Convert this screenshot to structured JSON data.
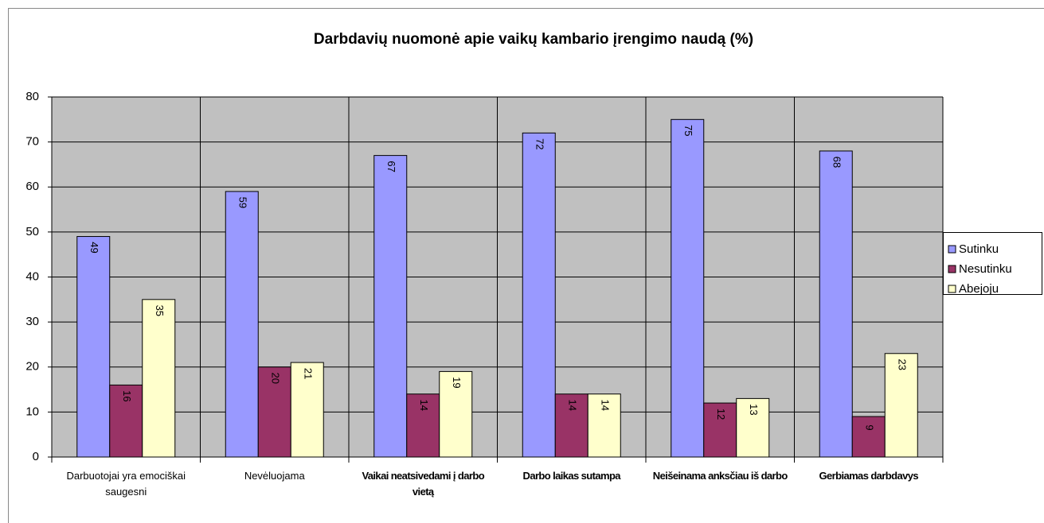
{
  "chart_data": {
    "type": "bar",
    "title": "Darbdavių nuomonė apie vaikų kambario įrengimo naudą (%)",
    "categories": [
      "Darbuotojai yra emociškai saugesni",
      "Nevėluojama",
      "Vaikai neatsivedami į darbo vietą",
      "Darbo laikas sutampa",
      "Neišeinama anksčiau iš darbo",
      "Gerbiamas darbdavys"
    ],
    "series": [
      {
        "name": "Sutinku",
        "color": "#9999ff",
        "values": [
          49,
          59,
          67,
          72,
          75,
          68
        ]
      },
      {
        "name": "Nesutinku",
        "color": "#993366",
        "values": [
          16,
          20,
          14,
          14,
          12,
          9
        ]
      },
      {
        "name": "Abejoju",
        "color": "#ffffcc",
        "values": [
          35,
          21,
          19,
          14,
          13,
          23
        ]
      }
    ],
    "ylim": [
      0,
      80
    ],
    "yticks": [
      0,
      10,
      20,
      30,
      40,
      50,
      60,
      70,
      80
    ],
    "grid": true,
    "legend": "right"
  }
}
